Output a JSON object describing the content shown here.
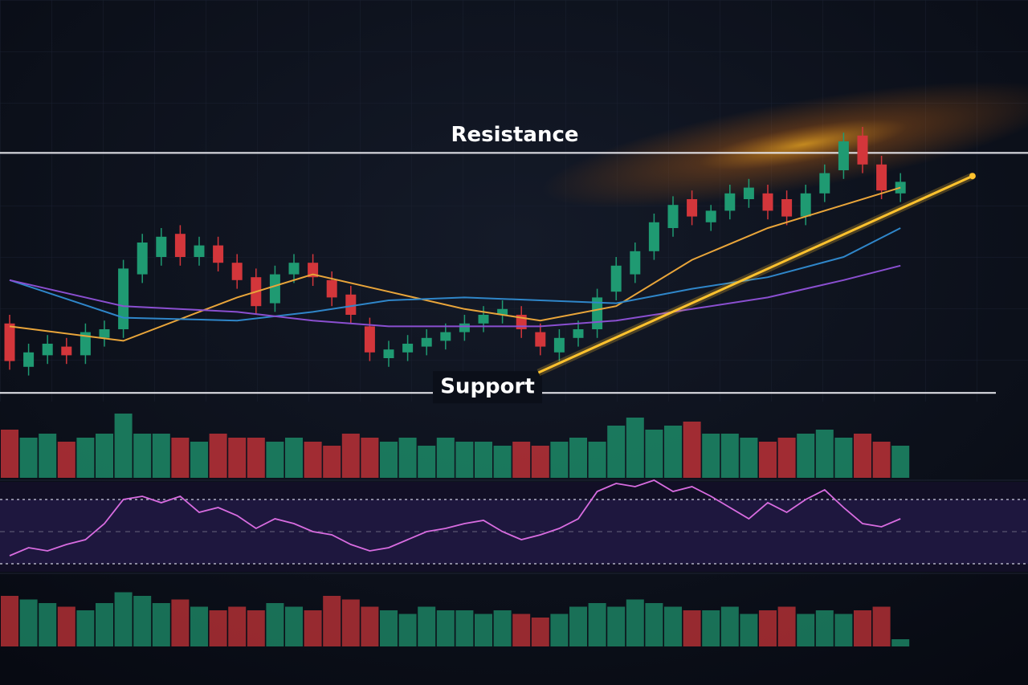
{
  "chart_data": {
    "type": "candlestick",
    "open": [
      27,
      12,
      16,
      19,
      16,
      22,
      25,
      44,
      50,
      58,
      50,
      54,
      48,
      43,
      34,
      44,
      48,
      42,
      37,
      26,
      15,
      17,
      19,
      21,
      24,
      27,
      30,
      30,
      24,
      17,
      22,
      25,
      38,
      44,
      52,
      60,
      70,
      62,
      66,
      70,
      72,
      70,
      64,
      72,
      80,
      92,
      82,
      72
    ],
    "high": [
      30,
      20,
      23,
      22,
      27,
      28,
      49,
      58,
      60,
      61,
      57,
      57,
      51,
      46,
      47,
      51,
      51,
      45,
      40,
      29,
      21,
      23,
      25,
      27,
      30,
      33,
      35,
      33,
      27,
      25,
      28,
      39,
      50,
      55,
      65,
      71,
      73,
      68,
      75,
      77,
      75,
      73,
      75,
      82,
      93,
      95,
      85,
      79
    ],
    "low": [
      11,
      9,
      13,
      13,
      13,
      19,
      22,
      41,
      47,
      47,
      47,
      45,
      39,
      30,
      31,
      41,
      40,
      33,
      27,
      14,
      12,
      14,
      16,
      18,
      21,
      24,
      27,
      22,
      16,
      14,
      19,
      22,
      35,
      41,
      49,
      57,
      61,
      59,
      63,
      67,
      63,
      61,
      61,
      69,
      77,
      79,
      70,
      69
    ],
    "close": [
      14,
      17,
      20,
      16,
      24,
      25,
      46,
      55,
      57,
      50,
      54,
      48,
      42,
      33,
      44,
      48,
      43,
      36,
      30,
      17,
      18,
      20,
      22,
      24,
      27,
      30,
      32,
      25,
      19,
      22,
      25,
      36,
      47,
      52,
      62,
      68,
      64,
      66,
      72,
      74,
      66,
      64,
      72,
      79,
      90,
      82,
      73,
      76
    ],
    "up_color": "#1f9a72",
    "down_color": "#d3363b",
    "ylim": [
      0,
      100
    ],
    "moving_averages": [
      {
        "color": "#e9a53a",
        "x": [
          0,
          6,
          12,
          16,
          20,
          24,
          28,
          32,
          36,
          40,
          44,
          47
        ],
        "values": [
          26,
          21,
          36,
          44,
          38,
          32,
          28,
          33,
          49,
          60,
          68,
          74
        ]
      },
      {
        "color": "#2f86c9",
        "x": [
          0,
          6,
          12,
          16,
          20,
          24,
          28,
          32,
          36,
          40,
          44,
          47
        ],
        "values": [
          42,
          29,
          28,
          31,
          35,
          36,
          35,
          34,
          39,
          43,
          50,
          60
        ]
      },
      {
        "color": "#8a4fd0",
        "x": [
          0,
          6,
          12,
          16,
          20,
          24,
          28,
          32,
          36,
          40,
          44,
          47
        ],
        "values": [
          42,
          33,
          31,
          28,
          26,
          26,
          26,
          28,
          32,
          36,
          42,
          47
        ]
      }
    ],
    "trendline": {
      "color": "#ffc22e",
      "x": [
        27.9,
        50.8
      ],
      "values": [
        10,
        78
      ]
    },
    "annotations": [
      {
        "text": "Resistance",
        "value": 86
      },
      {
        "text": "Support",
        "value": 3
      }
    ],
    "volume": {
      "ylim": [
        0,
        100
      ],
      "values": [
        60,
        50,
        55,
        45,
        50,
        55,
        80,
        55,
        55,
        50,
        45,
        55,
        50,
        50,
        45,
        50,
        45,
        40,
        55,
        50,
        45,
        50,
        40,
        50,
        45,
        45,
        40,
        45,
        40,
        45,
        50,
        45,
        65,
        75,
        60,
        65,
        70,
        55,
        55,
        50,
        45,
        50,
        55,
        60,
        50,
        55,
        45,
        40
      ]
    },
    "rsi": {
      "color": "#d86ce0",
      "ylim": [
        10,
        90
      ],
      "levels": [
        30,
        50,
        70
      ],
      "values": [
        35,
        40,
        38,
        42,
        45,
        55,
        70,
        72,
        68,
        72,
        62,
        65,
        60,
        52,
        58,
        55,
        50,
        48,
        42,
        38,
        40,
        45,
        50,
        52,
        55,
        57,
        50,
        45,
        48,
        52,
        58,
        75,
        80,
        78,
        82,
        75,
        78,
        72,
        65,
        58,
        68,
        62,
        70,
        76,
        65,
        55,
        53,
        58
      ]
    },
    "histogram": {
      "ylim": [
        0,
        100
      ],
      "values": [
        70,
        65,
        60,
        55,
        50,
        60,
        75,
        70,
        60,
        65,
        55,
        50,
        55,
        50,
        60,
        55,
        50,
        70,
        65,
        55,
        50,
        45,
        55,
        50,
        50,
        45,
        50,
        45,
        40,
        45,
        55,
        60,
        55,
        65,
        60,
        55,
        50,
        50,
        55,
        45,
        50,
        55,
        45,
        50,
        45,
        50,
        55,
        10
      ]
    }
  }
}
